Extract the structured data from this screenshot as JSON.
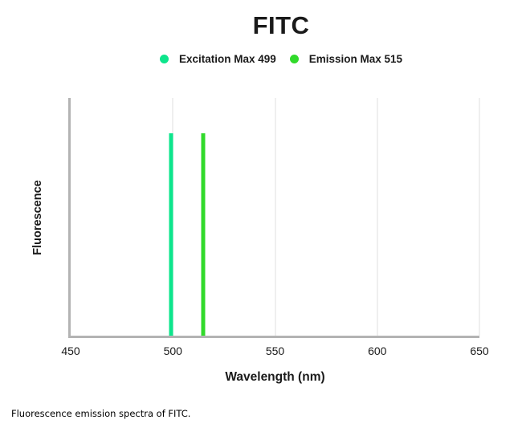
{
  "chart": {
    "title": "FITC",
    "xlabel": "Wavelength (nm)",
    "ylabel": "Fluorescence",
    "caption": "Fluorescence emission spectra of FITC.",
    "colors": {
      "axis": "#b3b3b3",
      "grid": "#efefef",
      "text": "#1a1a1a"
    }
  },
  "chart_data": {
    "type": "bar",
    "title": "FITC",
    "xlabel": "Wavelength (nm)",
    "ylabel": "Fluorescence",
    "xlim": [
      450,
      650
    ],
    "x_ticks": [
      450,
      500,
      550,
      600,
      650
    ],
    "grid_ticks": [
      500,
      550,
      600,
      650
    ],
    "y_ticks_visible": false,
    "grid": "vertical-only",
    "legend_position": "top-center",
    "series": [
      {
        "id": "excitation",
        "name": "Excitation Max 499",
        "peak_wavelength_nm": 499,
        "relative_intensity": 0.85,
        "color": "#0de58c"
      },
      {
        "id": "emission",
        "name": "Emission Max 515",
        "peak_wavelength_nm": 515,
        "relative_intensity": 0.85,
        "color": "#31da2b"
      }
    ]
  }
}
